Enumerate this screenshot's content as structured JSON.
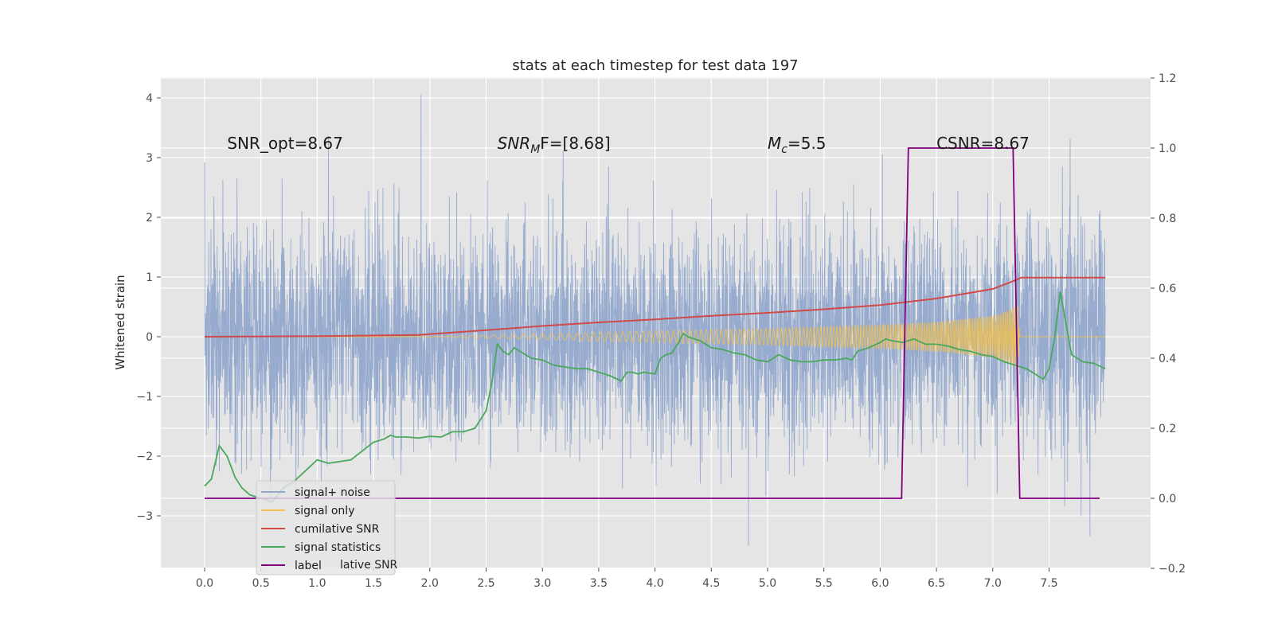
{
  "chart_data": {
    "type": "line",
    "title": "stats at each timestep for test data 197",
    "ylabel": "Whitened strain",
    "xlabel": "",
    "xlim": [
      -0.38,
      8.4
    ],
    "ylim": [
      -3.9,
      4.4
    ],
    "y2lim": [
      -0.2,
      1.2
    ],
    "grid": true,
    "legend_position": "lower-left",
    "xticks": [
      "0.0",
      "0.5",
      "1.0",
      "1.5",
      "2.0",
      "2.5",
      "3.0",
      "3.5",
      "4.0",
      "4.5",
      "5.0",
      "5.5",
      "6.0",
      "6.5",
      "7.0",
      "7.5"
    ],
    "yticks": [
      "−3",
      "−2",
      "−1",
      "0",
      "1",
      "2",
      "3",
      "4"
    ],
    "y2ticks": [
      "−0.2",
      "0.0",
      "0.2",
      "0.4",
      "0.6",
      "0.8",
      "1.0",
      "1.2"
    ],
    "annotations": [
      {
        "text": "SNR_opt=8.67",
        "x": 0.2,
        "y": 3.15
      },
      {
        "pre": "SNR",
        "sub": "M",
        "post": "F=[8.68]",
        "x": 2.6,
        "y": 3.15
      },
      {
        "pre": "M",
        "sub": "c",
        "post": "=5.5",
        "x": 5.0,
        "y": 3.15
      },
      {
        "text": "CSNR=8.67",
        "x": 6.5,
        "y": 3.15
      }
    ],
    "legend_residual_text": "lative SNR",
    "series": [
      {
        "name": "signal+ noise",
        "color": "#92a8cd",
        "axis": "left",
        "kind": "noise",
        "x_range": [
          0.0,
          8.0
        ],
        "envelope": [
          -3.5,
          4.05
        ]
      },
      {
        "name": "signal only",
        "color": "#f2c14e",
        "axis": "left",
        "kind": "chirp",
        "x": [
          1.9,
          3.0,
          4.0,
          5.0,
          6.0,
          6.5,
          7.0,
          7.15,
          7.22,
          7.24,
          8.0
        ],
        "amplitude": [
          0.0,
          0.05,
          0.1,
          0.14,
          0.2,
          0.25,
          0.35,
          0.45,
          0.55,
          0.0,
          0.0
        ]
      },
      {
        "name": "cumilative SNR",
        "color": "#d04a4a",
        "axis": "left",
        "x": [
          0.0,
          1.0,
          1.9,
          2.5,
          3.0,
          3.5,
          4.0,
          4.5,
          5.0,
          5.5,
          6.0,
          6.5,
          7.0,
          7.22,
          7.25,
          8.0
        ],
        "y": [
          0.0,
          0.01,
          0.03,
          0.11,
          0.18,
          0.24,
          0.29,
          0.35,
          0.4,
          0.46,
          0.53,
          0.64,
          0.8,
          0.96,
          0.99,
          0.99
        ]
      },
      {
        "name": "signal statistics",
        "color": "#4aa85c",
        "axis": "right",
        "x": [
          0.0,
          0.06,
          0.13,
          0.2,
          0.27,
          0.33,
          0.4,
          0.5,
          0.6,
          0.7,
          0.8,
          0.9,
          1.0,
          1.1,
          1.2,
          1.3,
          1.4,
          1.5,
          1.6,
          1.65,
          1.7,
          1.8,
          1.9,
          2.0,
          2.1,
          2.2,
          2.3,
          2.4,
          2.5,
          2.55,
          2.6,
          2.65,
          2.7,
          2.75,
          2.8,
          2.85,
          2.9,
          3.0,
          3.1,
          3.2,
          3.3,
          3.4,
          3.5,
          3.6,
          3.7,
          3.75,
          3.8,
          3.85,
          3.9,
          4.0,
          4.05,
          4.1,
          4.15,
          4.2,
          4.25,
          4.3,
          4.4,
          4.5,
          4.6,
          4.7,
          4.8,
          4.9,
          5.0,
          5.1,
          5.2,
          5.3,
          5.4,
          5.5,
          5.6,
          5.7,
          5.75,
          5.8,
          5.9,
          6.0,
          6.05,
          6.1,
          6.2,
          6.3,
          6.4,
          6.5,
          6.6,
          6.7,
          6.8,
          6.9,
          7.0,
          7.1,
          7.2,
          7.3,
          7.4,
          7.45,
          7.5,
          7.55,
          7.6,
          7.65,
          7.7,
          7.8,
          7.9,
          8.0
        ],
        "y": [
          0.035,
          0.055,
          0.15,
          0.12,
          0.06,
          0.03,
          0.01,
          0.0,
          -0.01,
          0.03,
          0.05,
          0.08,
          0.11,
          0.1,
          0.105,
          0.11,
          0.135,
          0.16,
          0.17,
          0.18,
          0.175,
          0.175,
          0.172,
          0.177,
          0.175,
          0.19,
          0.19,
          0.2,
          0.25,
          0.33,
          0.44,
          0.42,
          0.41,
          0.43,
          0.42,
          0.41,
          0.4,
          0.395,
          0.38,
          0.375,
          0.37,
          0.37,
          0.36,
          0.35,
          0.335,
          0.36,
          0.36,
          0.355,
          0.36,
          0.355,
          0.4,
          0.41,
          0.415,
          0.44,
          0.47,
          0.46,
          0.45,
          0.43,
          0.425,
          0.415,
          0.41,
          0.395,
          0.39,
          0.41,
          0.395,
          0.39,
          0.39,
          0.395,
          0.395,
          0.4,
          0.395,
          0.42,
          0.43,
          0.445,
          0.455,
          0.45,
          0.445,
          0.455,
          0.44,
          0.44,
          0.435,
          0.425,
          0.42,
          0.41,
          0.405,
          0.39,
          0.38,
          0.37,
          0.35,
          0.34,
          0.37,
          0.46,
          0.59,
          0.5,
          0.41,
          0.39,
          0.385,
          0.37
        ]
      },
      {
        "name": "label",
        "color": "#800080",
        "axis": "right",
        "x": [
          0.0,
          6.19,
          6.25,
          7.18,
          7.24,
          7.95
        ],
        "y": [
          0.0,
          0.0,
          1.0,
          1.0,
          0.0,
          0.0
        ]
      }
    ]
  }
}
